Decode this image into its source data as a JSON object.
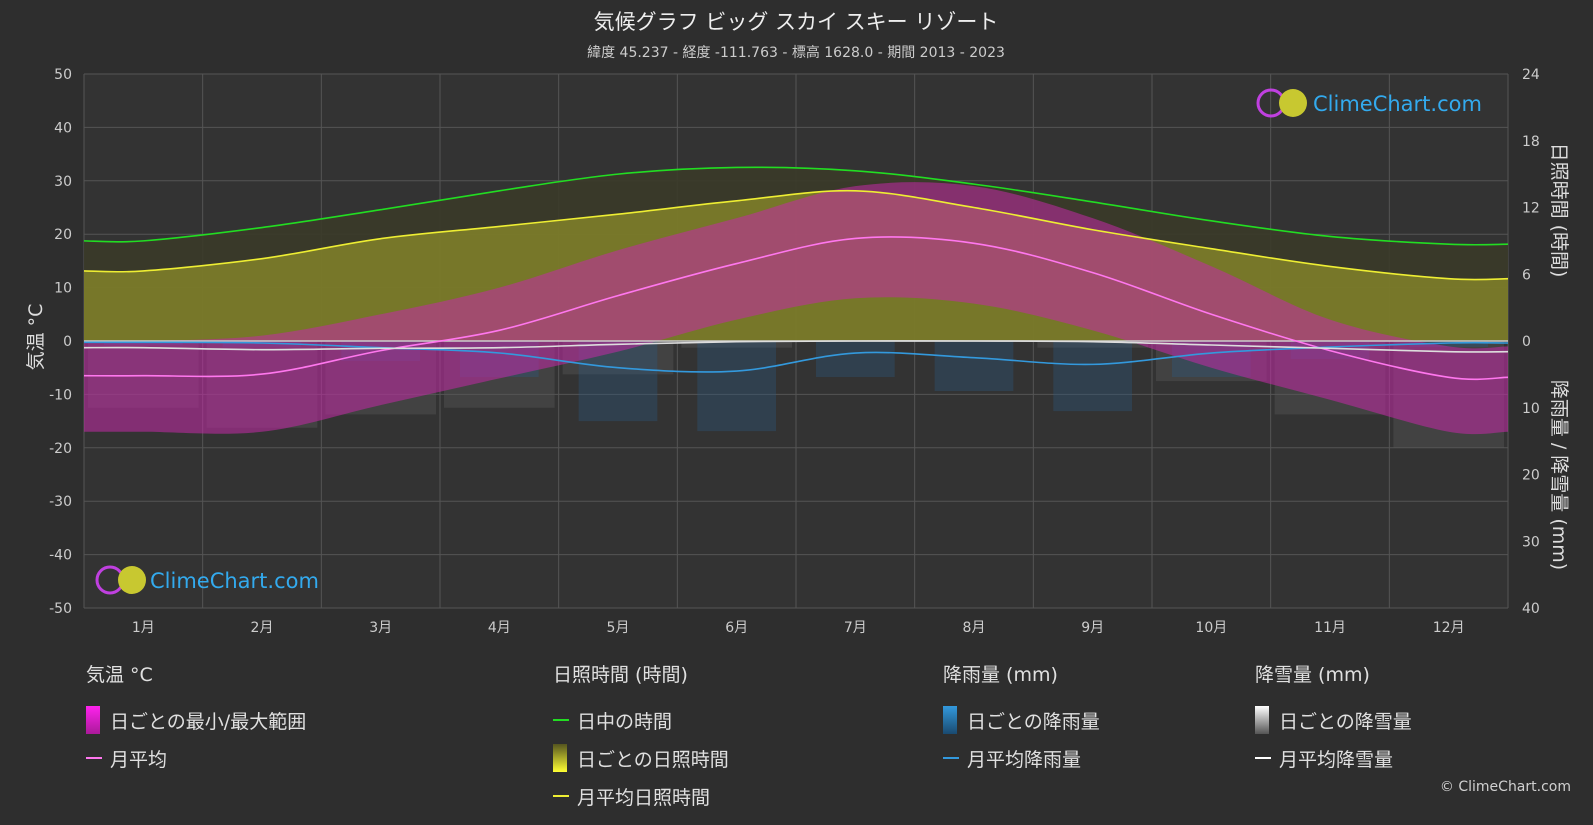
{
  "title": "気候グラフ ビッグ スカイ スキー リゾート",
  "subtitle": "緯度 45.237 - 経度 -111.763 - 標高 1628.0 - 期間 2013 - 2023",
  "logo_text": "ClimeChart.com",
  "copyright": "© ClimeChart.com",
  "colors": {
    "background": "#2e2e2e",
    "daylight": "#22dd22",
    "sunshine_avg": "#eeee33",
    "sunshine_band": "#8c8c2a",
    "temp_range": "#d030b0",
    "temp_avg": "#ff77ee",
    "rain": "#3399dd",
    "snow": "#ffffff"
  },
  "chart_data": {
    "type": "line",
    "categories": [
      "1月",
      "2月",
      "3月",
      "4月",
      "5月",
      "6月",
      "7月",
      "8月",
      "9月",
      "10月",
      "11月",
      "12月"
    ],
    "axes": {
      "left": {
        "label": "気温 °C",
        "min": -50,
        "max": 50,
        "ticks": [
          50,
          40,
          30,
          20,
          10,
          0,
          -10,
          -20,
          -30,
          -40,
          -50
        ]
      },
      "right_top": {
        "label": "日照時間 (時間)",
        "min": 0,
        "max": 24,
        "ticks": [
          24,
          18,
          12,
          6,
          0
        ]
      },
      "right_bottom": {
        "label": "降雨量 / 降雪量 (mm)",
        "min": 0,
        "max": 40,
        "ticks": [
          0,
          10,
          20,
          30,
          40
        ]
      }
    },
    "grid": true,
    "series": [
      {
        "name": "日中の時間",
        "axis": "right_top",
        "values": [
          9.0,
          10.2,
          11.8,
          13.5,
          15.0,
          15.6,
          15.3,
          14.1,
          12.5,
          10.8,
          9.4,
          8.7
        ]
      },
      {
        "name": "月平均日照時間",
        "axis": "right_top",
        "values": [
          6.3,
          7.4,
          9.2,
          10.3,
          11.4,
          12.6,
          13.5,
          12.0,
          10.0,
          8.3,
          6.7,
          5.6
        ]
      },
      {
        "name": "月平均",
        "axis": "left",
        "values": [
          -6.5,
          -6.2,
          -1.8,
          2.0,
          8.5,
          14.5,
          19.2,
          18.3,
          12.8,
          5.0,
          -1.8,
          -6.8
        ]
      },
      {
        "name": "月平均降雨量",
        "axis": "right_bottom",
        "values": [
          0.2,
          0.3,
          1.0,
          1.8,
          4.0,
          4.5,
          1.8,
          2.5,
          3.5,
          1.8,
          0.9,
          0.3
        ]
      },
      {
        "name": "月平均降雪量",
        "axis": "right_bottom",
        "values": [
          1.0,
          1.3,
          1.1,
          1.0,
          0.5,
          0.1,
          0.0,
          0.0,
          0.1,
          0.6,
          1.1,
          1.6
        ]
      },
      {
        "name": "日ごとの最小/最大範囲",
        "axis": "left",
        "min": [
          -17,
          -17,
          -12,
          -7,
          -2,
          4,
          8,
          7,
          2,
          -5,
          -11,
          -17
        ],
        "max": [
          0,
          1,
          5,
          10,
          17,
          23,
          29,
          29,
          23,
          14,
          4,
          -1
        ]
      }
    ]
  },
  "legend": {
    "temp": {
      "heading": "気温 °C",
      "range": "日ごとの最小/最大範囲",
      "avg": "月平均"
    },
    "sun": {
      "heading": "日照時間 (時間)",
      "daylight": "日中の時間",
      "daily": "日ごとの日照時間",
      "avg": "月平均日照時間"
    },
    "rain": {
      "heading": "降雨量 (mm)",
      "daily": "日ごとの降雨量",
      "avg": "月平均降雨量"
    },
    "snow": {
      "heading": "降雪量 (mm)",
      "daily": "日ごとの降雪量",
      "avg": "月平均降雪量"
    }
  }
}
